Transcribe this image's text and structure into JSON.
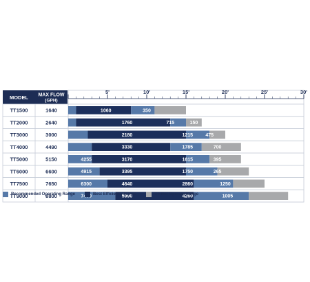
{
  "header": {
    "model_label": "MODEL",
    "flow_label_line1": "MAX FLOW",
    "flow_label_line2": "(GPH)"
  },
  "colors": {
    "navy": "#1d2d55",
    "recommended": "#5679a8",
    "best": "#1c2f5b",
    "do_not": "#a8a9ab",
    "row_border": "#c6ccd8"
  },
  "legend": [
    {
      "label": "Recommended Operating Range",
      "color": "#5679a8",
      "name": "recommended"
    },
    {
      "label": "Best Efficiency Range",
      "color": "#1c2f5b",
      "name": "best"
    },
    {
      "label": "Do Not Operate Range",
      "color": "#a8a9ab",
      "name": "do-not"
    }
  ],
  "chart_data": {
    "type": "bar",
    "orientation": "horizontal",
    "stacked": true,
    "xlabel": "",
    "x_ticks": [
      "5'",
      "10'",
      "15'",
      "20'",
      "25'",
      "30'"
    ],
    "xlim": [
      0,
      30
    ],
    "grid": true,
    "legend_position": "bottom",
    "rows": [
      {
        "model": "TT1500",
        "max_flow": "1640",
        "segments": [
          {
            "type": "recommended",
            "start": 0,
            "end": 1,
            "label": ""
          },
          {
            "type": "best",
            "start": 1,
            "end": 8,
            "label": "1060"
          },
          {
            "type": "recommended",
            "start": 8,
            "end": 11,
            "label": "350"
          },
          {
            "type": "do_not",
            "start": 11,
            "end": 15,
            "label": ""
          }
        ]
      },
      {
        "model": "TT2000",
        "max_flow": "2640",
        "segments": [
          {
            "type": "recommended",
            "start": 0,
            "end": 1,
            "label": ""
          },
          {
            "type": "best",
            "start": 1,
            "end": 13,
            "label": "1760"
          },
          {
            "type": "recommended",
            "start": 13,
            "end": 15,
            "label": "715"
          },
          {
            "type": "do_not",
            "start": 15,
            "end": 17,
            "label": "150"
          }
        ]
      },
      {
        "model": "TT3000",
        "max_flow": "3000",
        "segments": [
          {
            "type": "recommended",
            "start": 0,
            "end": 2.5,
            "label": ""
          },
          {
            "type": "best",
            "start": 2.5,
            "end": 15,
            "label": "2180"
          },
          {
            "type": "recommended",
            "start": 15,
            "end": 18,
            "label": "1215"
          },
          {
            "type": "do_not",
            "start": 18,
            "end": 20,
            "label": "475"
          }
        ]
      },
      {
        "model": "TT4000",
        "max_flow": "4490",
        "segments": [
          {
            "type": "recommended",
            "start": 0,
            "end": 3,
            "label": ""
          },
          {
            "type": "best",
            "start": 3,
            "end": 13,
            "label": "3330"
          },
          {
            "type": "recommended",
            "start": 13,
            "end": 17,
            "label": "1785"
          },
          {
            "type": "do_not",
            "start": 17,
            "end": 22,
            "label": "700"
          }
        ]
      },
      {
        "model": "TT5000",
        "max_flow": "5150",
        "segments": [
          {
            "type": "recommended",
            "start": 0,
            "end": 3,
            "label": "4255"
          },
          {
            "type": "best",
            "start": 3,
            "end": 15,
            "label": "3170"
          },
          {
            "type": "recommended",
            "start": 15,
            "end": 18,
            "label": "1615"
          },
          {
            "type": "do_not",
            "start": 18,
            "end": 22,
            "label": "395"
          }
        ]
      },
      {
        "model": "TT6000",
        "max_flow": "6600",
        "segments": [
          {
            "type": "recommended",
            "start": 0,
            "end": 4,
            "label": "4915"
          },
          {
            "type": "best",
            "start": 4,
            "end": 15,
            "label": "3395"
          },
          {
            "type": "recommended",
            "start": 15,
            "end": 19,
            "label": "1750"
          },
          {
            "type": "do_not",
            "start": 19,
            "end": 23,
            "label": "265"
          }
        ]
      },
      {
        "model": "TT7500",
        "max_flow": "7650",
        "segments": [
          {
            "type": "recommended",
            "start": 0,
            "end": 5,
            "label": "6300"
          },
          {
            "type": "best",
            "start": 5,
            "end": 16,
            "label": "4640"
          },
          {
            "type": "recommended",
            "start": 16,
            "end": 21,
            "label": "2860"
          },
          {
            "type": "do_not",
            "start": 21,
            "end": 25,
            "label": "1250"
          }
        ]
      },
      {
        "model": "TT9000",
        "max_flow": "8800",
        "segments": [
          {
            "type": "recommended",
            "start": 0,
            "end": 6,
            "label": "7470"
          },
          {
            "type": "best",
            "start": 6,
            "end": 16,
            "label": "5990"
          },
          {
            "type": "recommended",
            "start": 16,
            "end": 23,
            "label": "4260"
          },
          {
            "type": "do_not",
            "start": 23,
            "end": 28,
            "label": "1005"
          }
        ]
      }
    ],
    "value_label_positions": [
      [
        null,
        4.8,
        10.0,
        null
      ],
      [
        null,
        7.5,
        13.0,
        16.0
      ],
      [
        null,
        7.5,
        15.2,
        18.0
      ],
      [
        null,
        7.5,
        15.2,
        19.0
      ],
      [
        2.3,
        7.5,
        15.2,
        19.0
      ],
      [
        2.3,
        7.5,
        15.2,
        19.0
      ],
      [
        2.3,
        7.5,
        15.2,
        20.0
      ],
      [
        2.3,
        7.5,
        15.2,
        20.3
      ]
    ]
  }
}
